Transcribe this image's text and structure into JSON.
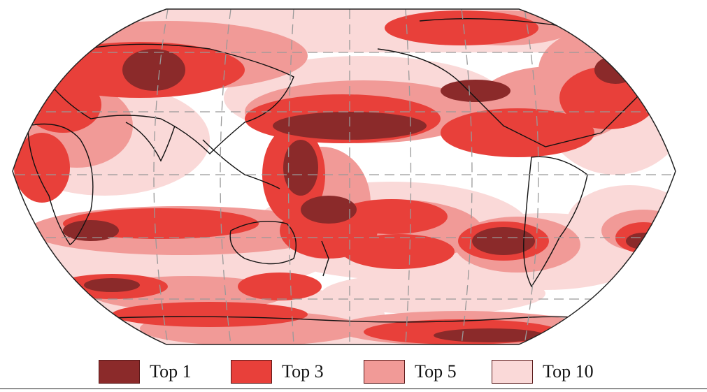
{
  "legend": {
    "items": [
      {
        "label": "Top 1",
        "color": "#8b2a2a"
      },
      {
        "label": "Top 3",
        "color": "#e8403a"
      },
      {
        "label": "Top 5",
        "color": "#f19a97"
      },
      {
        "label": "Top 10",
        "color": "#fad9d8"
      }
    ]
  },
  "map": {
    "projection": "Robinson, Pacific-centered",
    "background_color": "#ffffff",
    "gridlines": "dashed grey",
    "coastlines": "black"
  }
}
